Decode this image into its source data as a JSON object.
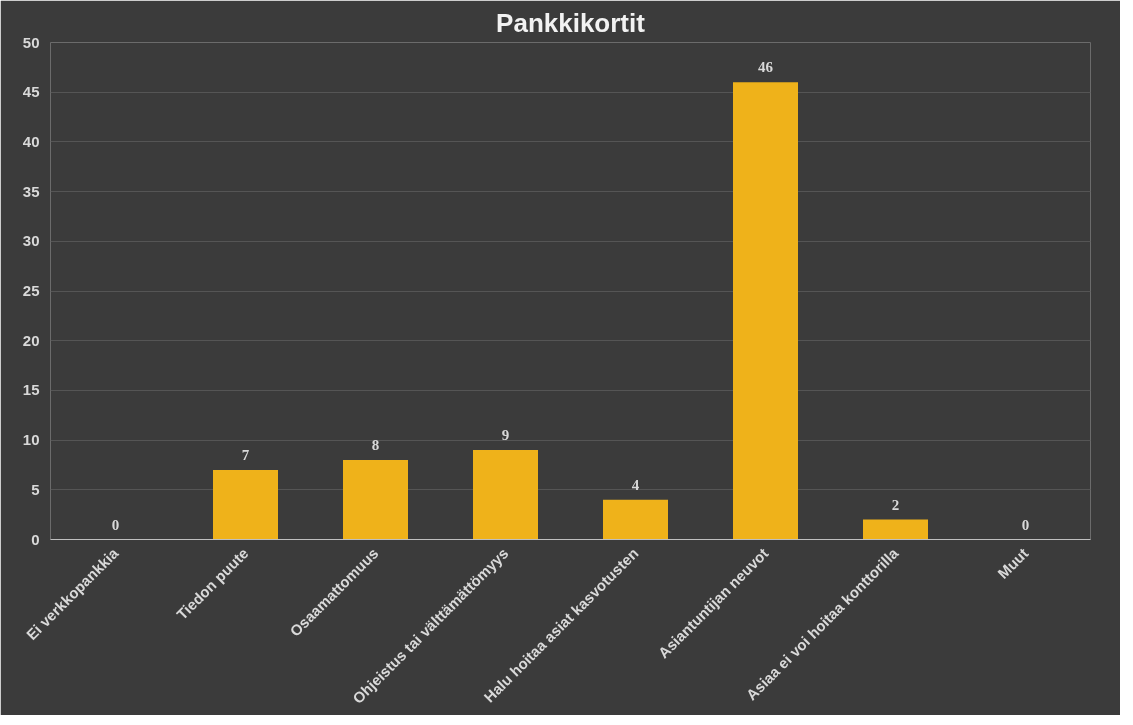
{
  "chart_data": {
    "type": "bar",
    "title": "Pankkikortit",
    "categories": [
      "Ei verkkopankkia",
      "Tiedon puute",
      "Osaamattomuus",
      "Ohjeistus tai välttämättömyys",
      "Halu hoitaa asiat kasvotusten",
      "Asiantuntijan neuvot",
      "Asiaa ei voi hoitaa konttorilla",
      "Muut"
    ],
    "values": [
      0,
      7,
      8,
      9,
      4,
      46,
      2,
      0
    ],
    "color": "#efb21a",
    "ylim": [
      0,
      50
    ],
    "yticks": [
      0,
      5,
      10,
      15,
      20,
      25,
      30,
      35,
      40,
      45,
      50
    ],
    "grid": "y",
    "data_labels": true
  }
}
